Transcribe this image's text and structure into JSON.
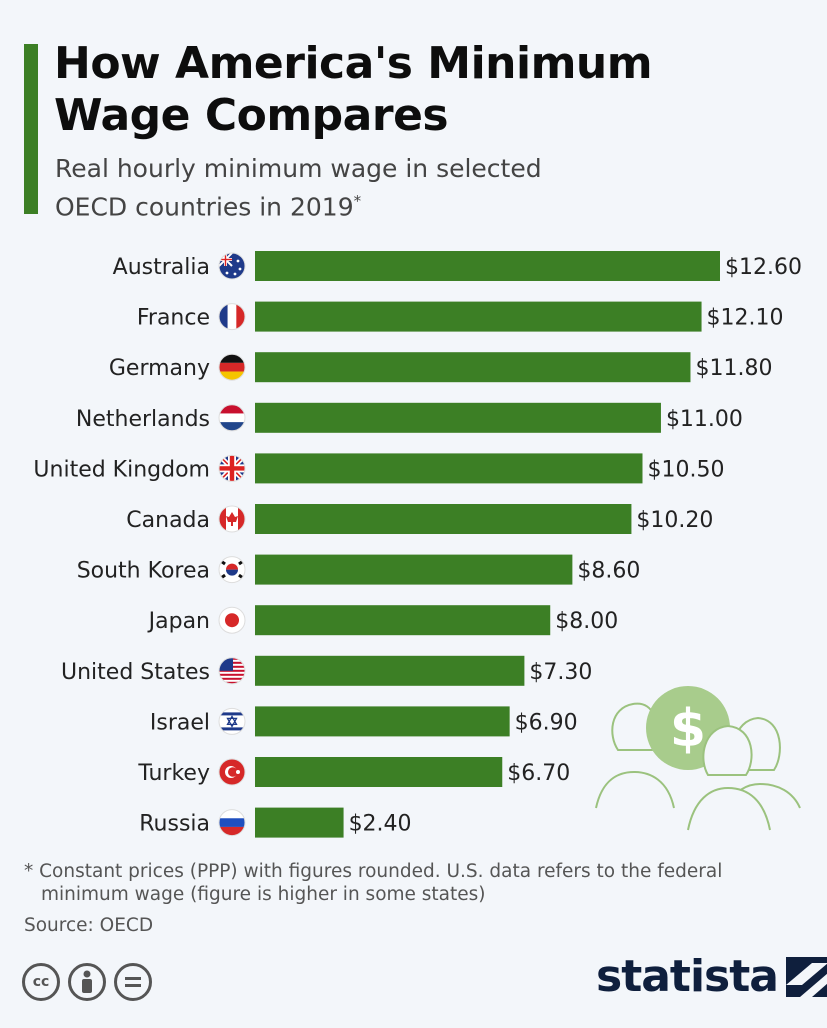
{
  "header": {
    "title": "How America's Minimum Wage Compares",
    "subtitle": "Real hourly minimum wage in selected OECD countries in 2019",
    "subtitle_marker": "*"
  },
  "colors": {
    "bar": "#3c7f25",
    "accent": "#3c7f25",
    "background": "#f3f6fa",
    "illustration": "#9bc27e"
  },
  "chart_data": {
    "type": "bar",
    "orientation": "horizontal",
    "categories": [
      "Australia",
      "France",
      "Germany",
      "Netherlands",
      "United Kingdom",
      "Canada",
      "South Korea",
      "Japan",
      "United States",
      "Israel",
      "Turkey",
      "Russia"
    ],
    "values": [
      12.6,
      12.1,
      11.8,
      11.0,
      10.5,
      10.2,
      8.6,
      8.0,
      7.3,
      6.9,
      6.7,
      2.4
    ],
    "value_labels": [
      "$12.60",
      "$12.10",
      "$11.80",
      "$11.00",
      "$10.50",
      "$10.20",
      "$8.60",
      "$8.00",
      "$7.30",
      "$6.90",
      "$6.70",
      "$2.40"
    ],
    "flags": [
      "australia-flag-icon",
      "france-flag-icon",
      "germany-flag-icon",
      "netherlands-flag-icon",
      "uk-flag-icon",
      "canada-flag-icon",
      "south-korea-flag-icon",
      "japan-flag-icon",
      "us-flag-icon",
      "israel-flag-icon",
      "turkey-flag-icon",
      "russia-flag-icon"
    ],
    "xlim": [
      0,
      12.6
    ],
    "grid": false,
    "legend": "none"
  },
  "footer": {
    "footnote_line1": "* Constant prices (PPP) with figures rounded. U.S. data refers to the federal",
    "footnote_line2": "minimum wage (figure is higher in some states)",
    "source": "Source: OECD",
    "brand": "statista",
    "license_icons": [
      "cc-icon",
      "attribution-icon",
      "no-derivatives-icon"
    ]
  }
}
